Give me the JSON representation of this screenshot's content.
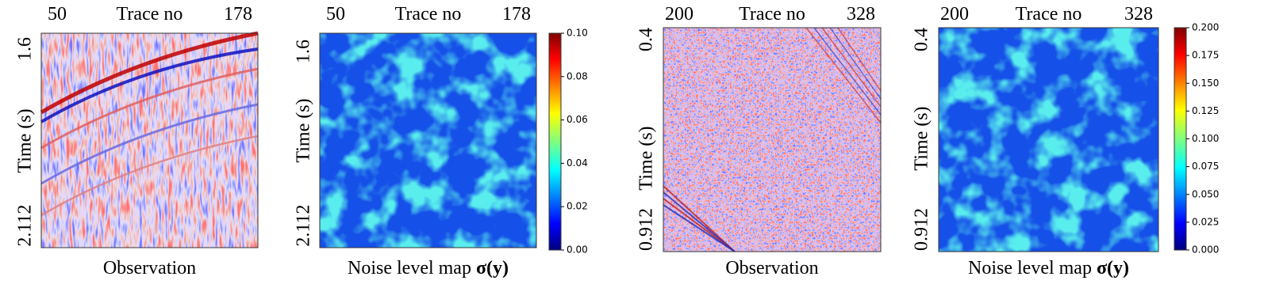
{
  "panels": [
    {
      "x_start": "50",
      "x_label": "Trace no",
      "x_end": "178",
      "y_top": "1.6",
      "y_label": "Time (s)",
      "y_bottom": "2.112",
      "caption": "Observation"
    },
    {
      "x_start": "50",
      "x_label": "Trace no",
      "x_end": "178",
      "y_top": "1.6",
      "y_label": "Time (s)",
      "y_bottom": "2.112",
      "caption": "Noise level map",
      "caption_math": "σ(y)"
    },
    {
      "x_start": "200",
      "x_label": "Trace no",
      "x_end": "328",
      "y_top": "0.4",
      "y_label": "Time (s)",
      "y_bottom": "0.912",
      "caption": "Observation"
    },
    {
      "x_start": "200",
      "x_label": "Trace no",
      "x_end": "328",
      "y_top": "0.4",
      "y_label": "Time (s)",
      "y_bottom": "0.912",
      "caption": "Noise level map",
      "caption_math": "σ(y)"
    }
  ],
  "colorbars": [
    {
      "ticks": [
        "0.10",
        "0.08",
        "0.06",
        "0.04",
        "0.02",
        "0.00"
      ]
    },
    {
      "ticks": [
        "0.200",
        "0.175",
        "0.150",
        "0.125",
        "0.100",
        "0.075",
        "0.050",
        "0.025",
        "0.000"
      ]
    }
  ]
}
